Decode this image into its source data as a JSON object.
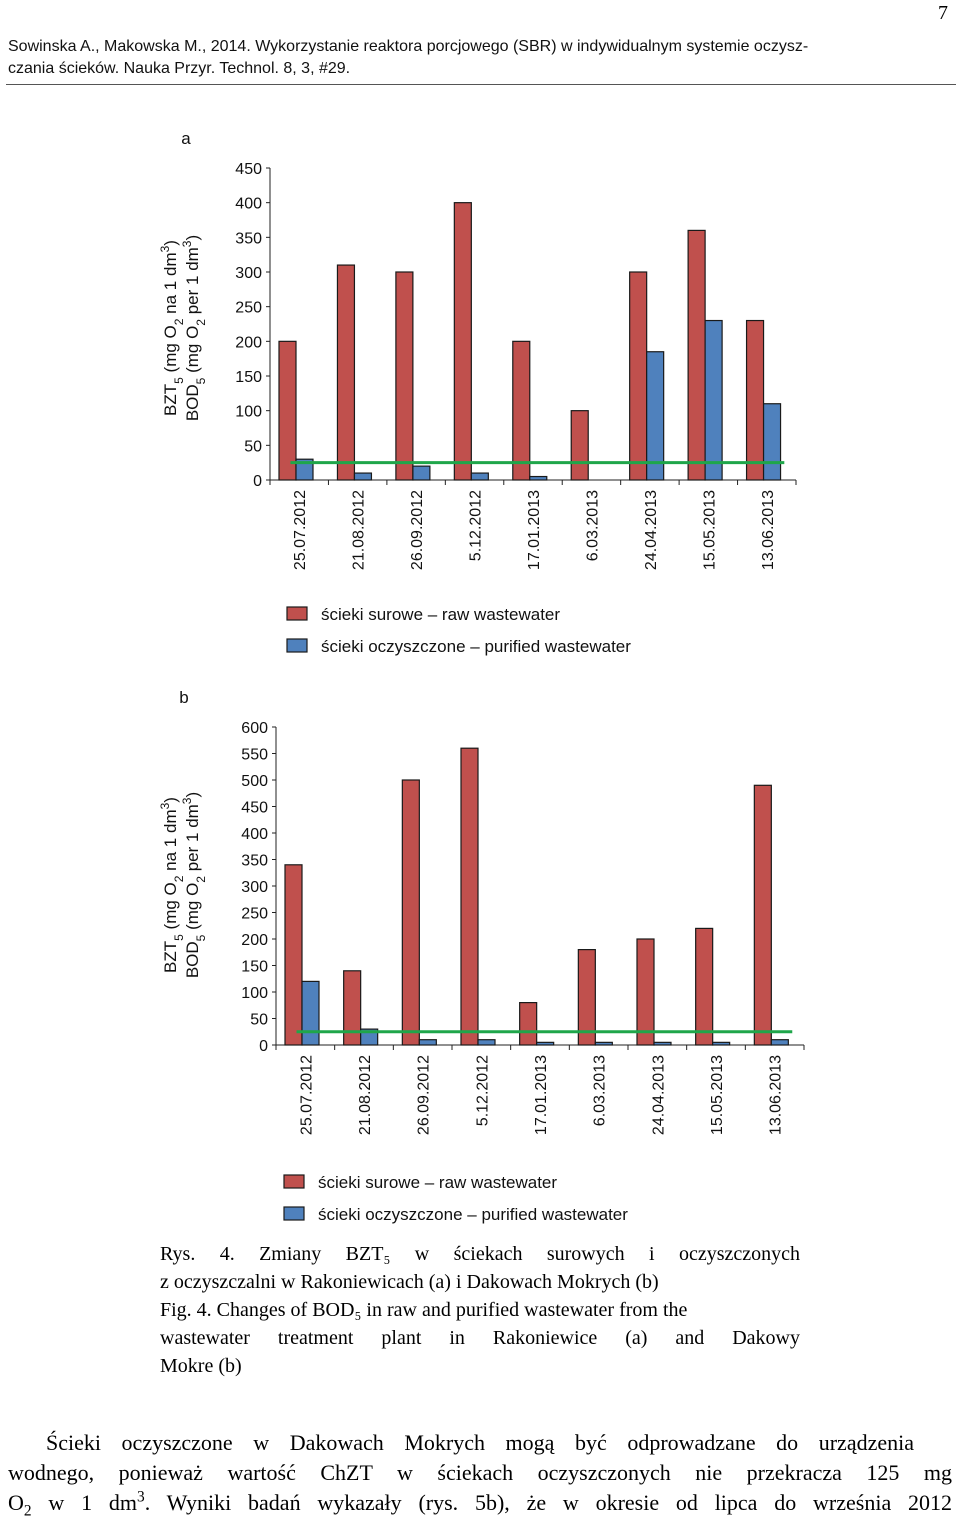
{
  "page_number": "7",
  "header": {
    "line1": "Sowinska A., Makowska M., 2014. Wykorzystanie reaktora porcjowego (SBR) w indywidualnym systemie oczysz-",
    "line2": "czania ścieków. Nauka Przyr. Technol. 8, 3, #29."
  },
  "chart_data": [
    {
      "type": "bar",
      "panel_label": "a",
      "categories": [
        "25.07.2012",
        "21.08.2012",
        "26.09.2012",
        "5.12.2012",
        "17.01.2013",
        "6.03.2013",
        "24.04.2013",
        "15.05.2013",
        "13.06.2013"
      ],
      "series": [
        {
          "name": "ścieki surowe – raw wastewater",
          "color": "#c0504d",
          "values": [
            200,
            310,
            300,
            400,
            200,
            100,
            300,
            360,
            230
          ]
        },
        {
          "name": "ścieki oczyszczone – purified wastewater",
          "color": "#4f81bd",
          "values": [
            30,
            10,
            20,
            10,
            5,
            0,
            185,
            230,
            110
          ]
        }
      ],
      "limit_line": {
        "value": 25,
        "color": "#1fa64a"
      },
      "ylabel_line1": "BZT",
      "ylabel_line1_sub": "5",
      "ylabel_line1_rest": " (mg O",
      "ylabel_line1_sub2": "2",
      "ylabel_line1_end": " na 1 dm",
      "ylabel_line1_sup": "3",
      "ylabel_line1_close": ")",
      "ylabel_line2": "BOD",
      "ylabel_line2_sub": "5",
      "ylabel_line2_rest": " (mg O",
      "ylabel_line2_sub2": "2",
      "ylabel_line2_end": " per 1 dm",
      "ylabel_line2_sup": "3",
      "ylabel_line2_close": ")",
      "ylim": [
        0,
        450
      ],
      "yticks": [
        0,
        50,
        100,
        150,
        200,
        250,
        300,
        350,
        400,
        450
      ],
      "grid": false,
      "legend_position": "bottom"
    },
    {
      "type": "bar",
      "panel_label": "b",
      "categories": [
        "25.07.2012",
        "21.08.2012",
        "26.09.2012",
        "5.12.2012",
        "17.01.2013",
        "6.03.2013",
        "24.04.2013",
        "15.05.2013",
        "13.06.2013"
      ],
      "series": [
        {
          "name": "ścieki surowe – raw wastewater",
          "color": "#c0504d",
          "values": [
            340,
            140,
            500,
            560,
            80,
            180,
            200,
            220,
            490
          ]
        },
        {
          "name": "ścieki oczyszczone – purified wastewater",
          "color": "#4f81bd",
          "values": [
            120,
            30,
            10,
            10,
            5,
            5,
            5,
            5,
            10
          ]
        }
      ],
      "limit_line": {
        "value": 25,
        "color": "#1fa64a"
      },
      "ylabel_line1": "BZT",
      "ylabel_line1_sub": "5",
      "ylabel_line1_rest": " (mg O",
      "ylabel_line1_sub2": "2",
      "ylabel_line1_end": " na 1 dm",
      "ylabel_line1_sup": "3",
      "ylabel_line1_close": ")",
      "ylabel_line2": "BOD",
      "ylabel_line2_sub": "5",
      "ylabel_line2_rest": " (mg O",
      "ylabel_line2_sub2": "2",
      "ylabel_line2_end": " per 1 dm",
      "ylabel_line2_sup": "3",
      "ylabel_line2_close": ")",
      "ylim": [
        0,
        600
      ],
      "yticks": [
        0,
        50,
        100,
        150,
        200,
        250,
        300,
        350,
        400,
        450,
        500,
        550,
        600
      ],
      "grid": false,
      "legend_position": "bottom"
    }
  ],
  "caption": {
    "pl_line1_words": [
      "Rys.",
      "4.",
      "Zmiany",
      "BZT₅",
      "w",
      "ściekach",
      "surowych",
      "i",
      "oczyszczonych"
    ],
    "pl_line2": "z oczyszczalni w Rakoniewicach (a) i Dakowach Mokrych (b)",
    "en_line1": "Fig. 4. Changes of BOD₅ in raw and purified wastewater from the",
    "en_line2_words": [
      "wastewater",
      "treatment",
      "plant",
      "in",
      "Rakoniewice",
      "(a)",
      "and",
      "Dakowy"
    ],
    "en_line3": "Mokre (b)"
  },
  "body_text": {
    "line1": "Ścieki oczyszczone w Dakowach Mokrych mogą być odprowadzane do urządzenia",
    "line2": "wodnego, ponieważ wartość ChZT w ściekach oczyszczonych nie przekracza 125 mg",
    "line3_a": "O",
    "line3_sub": "2",
    "line3_b": " w 1 dm",
    "line3_sup": "3",
    "line3_c": ". Wyniki badań wykazały (rys. 5b), że w okresie od lipca do września 2012"
  }
}
